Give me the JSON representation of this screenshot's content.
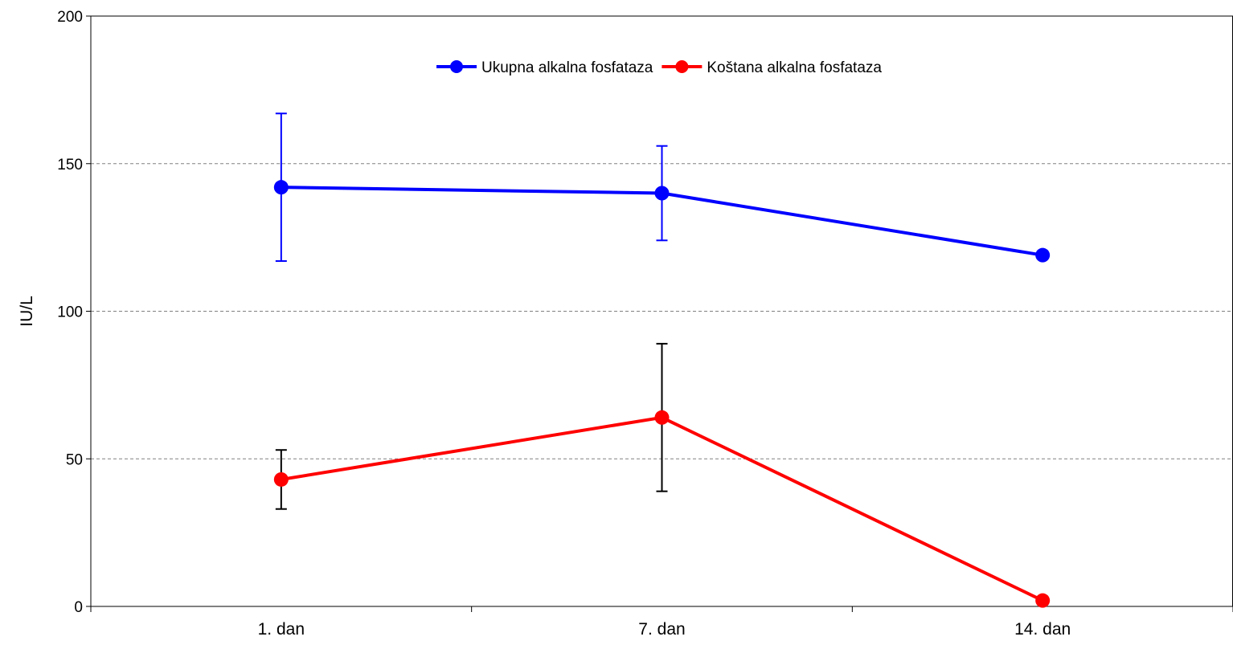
{
  "chart_data": {
    "type": "line",
    "title": "",
    "xlabel": "",
    "ylabel": "IU/L",
    "ylim": [
      0,
      200
    ],
    "yticks": [
      0,
      50,
      100,
      150,
      200
    ],
    "categories": [
      "1. dan",
      "7. dan",
      "14. dan"
    ],
    "grid": "horizontal dashed",
    "legend_position": "top-center",
    "series": [
      {
        "name": "Ukupna alkalna fosfataza",
        "color": "#0000ff",
        "errorbar_color": "#0000ff",
        "values": [
          142,
          140,
          119
        ],
        "error": [
          25,
          16,
          null
        ]
      },
      {
        "name": "Koštana alkalna fosfataza",
        "color": "#ff0000",
        "errorbar_color": "#000000",
        "values": [
          43,
          64,
          2
        ],
        "error": [
          10,
          25,
          null
        ]
      }
    ]
  }
}
